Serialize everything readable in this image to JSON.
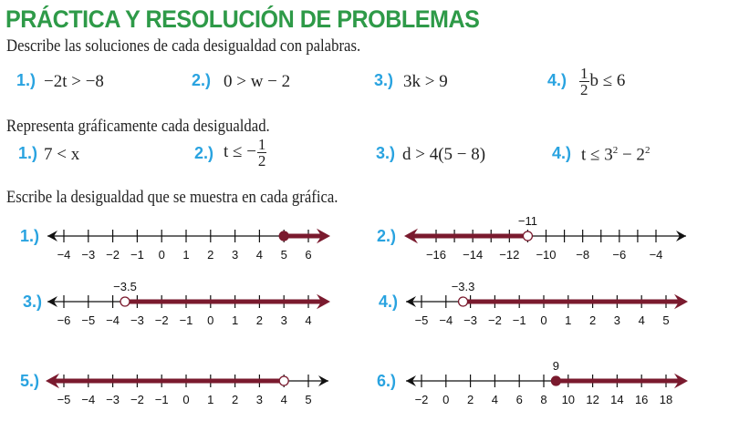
{
  "title": "PRÁCTICA Y RESOLUCIÓN DE PROBLEMAS",
  "section1": {
    "instruction": "Describe las soluciones de cada desigualdad con palabras.",
    "items": [
      {
        "num": "1.)",
        "expr": "−2t > −8"
      },
      {
        "num": "2.)",
        "expr": "0 > w − 2"
      },
      {
        "num": "3.)",
        "expr": "3k > 9"
      },
      {
        "num": "4.)",
        "frac_num": "1",
        "frac_den": "2",
        "expr": "b ≤ 6"
      }
    ]
  },
  "section2": {
    "instruction": "Representa gráficamente cada desigualdad.",
    "items": [
      {
        "num": "1.)",
        "expr": "7 < x"
      },
      {
        "num": "2.)",
        "expr": "t ≤ −",
        "frac_num": "1",
        "frac_den": "2"
      },
      {
        "num": "3.)",
        "expr": "d > 4(5 − 8)"
      },
      {
        "num": "4.)",
        "expr_a": "t ≤ 3",
        "sup1": "2",
        "expr_b": " − 2",
        "sup2": "2"
      }
    ]
  },
  "section3": {
    "instruction": "Escribe la desigualdad que se muestra en cada gráfica.",
    "graphs": [
      {
        "num": "1.)",
        "ticks": [
          -4,
          -3,
          -2,
          -1,
          0,
          1,
          2,
          3,
          4,
          5,
          6
        ],
        "point": 5,
        "closed": true,
        "direction": "right",
        "point_label": ""
      },
      {
        "num": "2.)",
        "ticks": [
          -16,
          -15,
          -14,
          -13,
          -12,
          -11,
          -10,
          -9,
          -8,
          -7,
          -6,
          -5,
          -4
        ],
        "tick_labels": [
          -16,
          -14,
          -12,
          -10,
          -8,
          -6,
          -4
        ],
        "tick_step": 2,
        "point": -11,
        "closed": false,
        "direction": "left",
        "point_label": "−11"
      },
      {
        "num": "3.)",
        "ticks": [
          -6,
          -5,
          -4,
          -3,
          -2,
          -1,
          0,
          1,
          2,
          3,
          4
        ],
        "point": -3.5,
        "closed": false,
        "direction": "right",
        "point_label": "−3.5"
      },
      {
        "num": "4.)",
        "ticks": [
          -5,
          -4,
          -3,
          -2,
          -1,
          0,
          1,
          2,
          3,
          4,
          5
        ],
        "point": -3.3,
        "closed": false,
        "direction": "right",
        "point_label": "−3.3"
      },
      {
        "num": "5.)",
        "ticks": [
          -5,
          -4,
          -3,
          -2,
          -1,
          0,
          1,
          2,
          3,
          4,
          5
        ],
        "point": 4,
        "closed": false,
        "direction": "left",
        "point_label": ""
      },
      {
        "num": "6.)",
        "ticks": [
          -2,
          0,
          2,
          4,
          6,
          8,
          10,
          12,
          14,
          16,
          18
        ],
        "point": 9,
        "closed": true,
        "direction": "right",
        "point_label": "9"
      }
    ]
  },
  "colors": {
    "title": "#2e9a48",
    "number": "#29a3e0",
    "graph": "#7a1a2e"
  }
}
